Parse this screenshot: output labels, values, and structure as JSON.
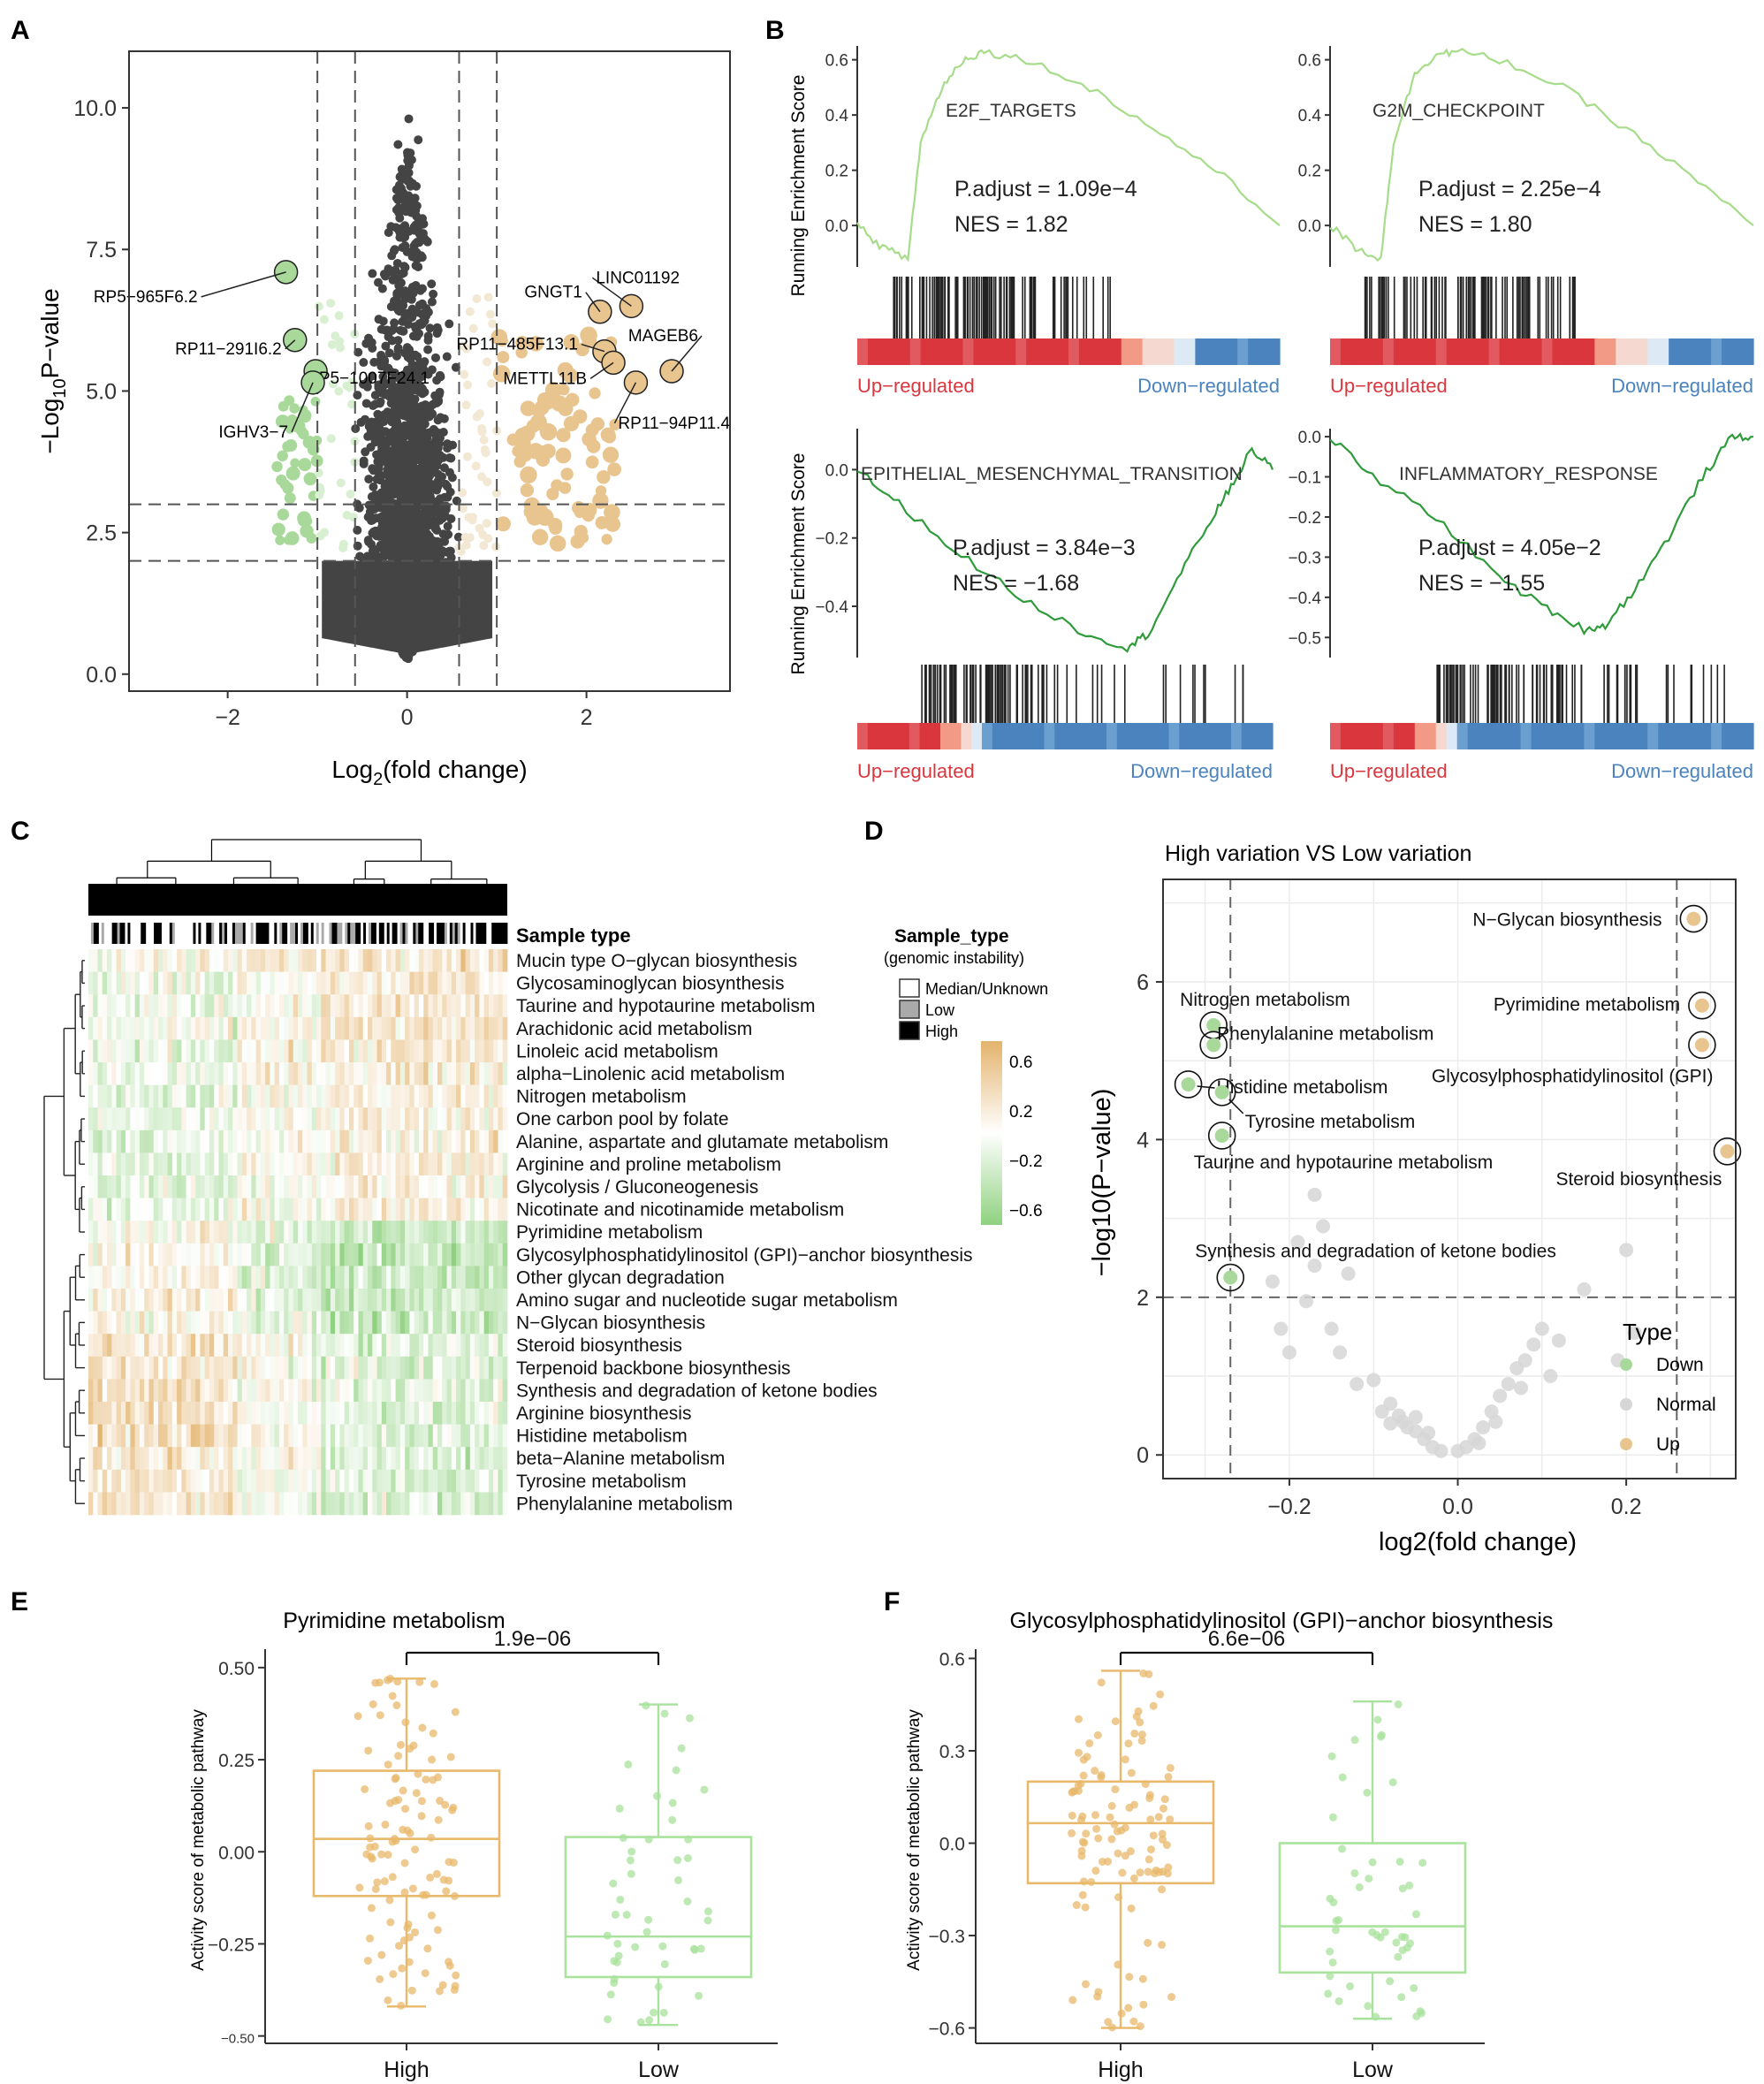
{
  "colors": {
    "down": "#a8d99a",
    "up": "#e8c48f",
    "up_light": "#f3e8d4",
    "down_light": "#d9efd2",
    "gray_pt": "#d6d6d6",
    "dark": "#444444",
    "gsea_pos": "#a6dc8a",
    "gsea_neg": "#2f9b3b",
    "up_red": "#d9363e",
    "down_blue": "#4a83bd",
    "box_high": "#e8b86b",
    "box_low": "#a8e29c"
  },
  "panel_letters": [
    "A",
    "B",
    "C",
    "D",
    "E",
    "F"
  ],
  "chart_data": [
    {
      "id": "A",
      "type": "scatter",
      "title": "",
      "xlabel_main": "Log",
      "xlabel_sub": "2",
      "xlabel_tail": "(fold change)",
      "ylabel_main": "−Log",
      "ylabel_sub": "10",
      "ylabel_tail": "P−value",
      "xlim": [
        -3.1,
        3.6
      ],
      "ylim": [
        -0.3,
        11.0
      ],
      "xticks": [
        -2,
        0,
        2
      ],
      "xtick_labels": [
        "−2",
        "0",
        "2"
      ],
      "yticks": [
        0,
        2.5,
        5,
        7.5,
        10
      ],
      "ytick_labels": [
        "0.0",
        "2.5",
        "5.0",
        "7.5",
        "10.0"
      ],
      "vlines": [
        -1,
        -0.58,
        0.58,
        1
      ],
      "hlines": [
        2,
        3
      ],
      "labeled_genes": [
        {
          "label": "RP5−965F6.2",
          "x": -1.35,
          "y": 7.1
        },
        {
          "label": "RP11−291I6.2",
          "x": -1.25,
          "y": 5.9
        },
        {
          "label": "RP5−1007F24.1",
          "x": -1.02,
          "y": 5.35
        },
        {
          "label": "IGHV3−7",
          "x": -1.05,
          "y": 5.15
        },
        {
          "label": "GNGT1",
          "x": 2.15,
          "y": 6.4
        },
        {
          "label": "LINC01192",
          "x": 2.5,
          "y": 6.5
        },
        {
          "label": "RP11−485F13.1",
          "x": 2.2,
          "y": 5.7
        },
        {
          "label": "MAGEB6",
          "x": 2.95,
          "y": 5.35
        },
        {
          "label": "METTL11B",
          "x": 2.3,
          "y": 5.5
        },
        {
          "label": "RP11−94P11.4",
          "x": 2.55,
          "y": 5.15
        }
      ]
    },
    {
      "id": "B",
      "type": "line",
      "ylabel": "Running Enrichment Score",
      "up_label": "Up−regulated",
      "down_label": "Down−regulated",
      "subplots": [
        {
          "name": "E2F_TARGETS",
          "padj": "P.adjust = 1.09e−4",
          "nes": "NES = 1.82",
          "ylim": [
            -0.15,
            0.65
          ],
          "yticks": [
            0.0,
            0.2,
            0.4,
            0.6
          ],
          "ytick_labels": [
            "0.0",
            "0.2",
            "0.4",
            "0.6"
          ],
          "curve": [
            [
              0,
              0.0
            ],
            [
              0.06,
              -0.08
            ],
            [
              0.12,
              -0.12
            ],
            [
              0.15,
              0.3
            ],
            [
              0.2,
              0.5
            ],
            [
              0.25,
              0.6
            ],
            [
              0.3,
              0.63
            ],
            [
              0.4,
              0.6
            ],
            [
              0.55,
              0.5
            ],
            [
              0.7,
              0.35
            ],
            [
              0.85,
              0.2
            ],
            [
              1.0,
              0.0
            ]
          ]
        },
        {
          "name": "G2M_CHECKPOINT",
          "padj": "P.adjust = 2.25e−4",
          "nes": "NES = 1.80",
          "ylim": [
            -0.15,
            0.65
          ],
          "yticks": [
            0.0,
            0.2,
            0.4,
            0.6
          ],
          "ytick_labels": [
            "0.0",
            "0.2",
            "0.4",
            "0.6"
          ],
          "curve": [
            [
              0,
              0.0
            ],
            [
              0.06,
              -0.08
            ],
            [
              0.12,
              -0.12
            ],
            [
              0.15,
              0.3
            ],
            [
              0.2,
              0.55
            ],
            [
              0.25,
              0.62
            ],
            [
              0.3,
              0.63
            ],
            [
              0.4,
              0.6
            ],
            [
              0.55,
              0.5
            ],
            [
              0.7,
              0.35
            ],
            [
              0.85,
              0.18
            ],
            [
              1.0,
              0.0
            ]
          ]
        },
        {
          "name": "EPITHELIAL_MESENCHYMAL_TRANSITION",
          "padj": "P.adjust = 3.84e−3",
          "nes": "NES = −1.68",
          "ylim": [
            -0.55,
            0.12
          ],
          "yticks": [
            0.0,
            -0.2,
            -0.4
          ],
          "ytick_labels": [
            "0.0",
            "−0.2",
            "−0.4"
          ],
          "curve": [
            [
              0,
              0.0
            ],
            [
              0.1,
              -0.1
            ],
            [
              0.25,
              -0.25
            ],
            [
              0.4,
              -0.38
            ],
            [
              0.55,
              -0.48
            ],
            [
              0.65,
              -0.52
            ],
            [
              0.7,
              -0.48
            ],
            [
              0.78,
              -0.3
            ],
            [
              0.85,
              -0.15
            ],
            [
              0.9,
              -0.05
            ],
            [
              0.95,
              0.06
            ],
            [
              1.0,
              0.0
            ]
          ]
        },
        {
          "name": "INFLAMMATORY_RESPONSE",
          "padj": "P.adjust = 4.05e−2",
          "nes": "NES = −1.55",
          "ylim": [
            -0.55,
            0.02
          ],
          "yticks": [
            0.0,
            -0.1,
            -0.2,
            -0.3,
            -0.4,
            -0.5
          ],
          "ytick_labels": [
            "0.0",
            "−0.1",
            "−0.2",
            "−0.3",
            "−0.4",
            "−0.5"
          ],
          "curve": [
            [
              0,
              0.0
            ],
            [
              0.1,
              -0.1
            ],
            [
              0.25,
              -0.2
            ],
            [
              0.4,
              -0.35
            ],
            [
              0.5,
              -0.42
            ],
            [
              0.6,
              -0.48
            ],
            [
              0.65,
              -0.47
            ],
            [
              0.72,
              -0.38
            ],
            [
              0.8,
              -0.25
            ],
            [
              0.88,
              -0.1
            ],
            [
              0.95,
              0.0
            ],
            [
              1.0,
              0.0
            ]
          ]
        }
      ]
    },
    {
      "id": "C",
      "type": "heatmap",
      "annotation_title": "Sample type",
      "legend_title": "Sample_type",
      "legend_subtitle": "(genomic instability)",
      "legend_items": [
        "Median/Unknown",
        "Low",
        "High"
      ],
      "colorbar_ticks": [
        "0.6",
        "0.2",
        "−0.2",
        "−0.6"
      ],
      "rows": [
        "Mucin type O−glycan biosynthesis",
        "Glycosaminoglycan biosynthesis",
        "Taurine and hypotaurine metabolism",
        "Arachidonic acid metabolism",
        "Linoleic acid metabolism",
        "alpha−Linolenic acid metabolism",
        "Nitrogen metabolism",
        "One carbon pool by folate",
        "Alanine, aspartate and glutamate metabolism",
        "Arginine and proline metabolism",
        "Glycolysis / Gluconeogenesis",
        "Nicotinate and nicotinamide metabolism",
        "Pyrimidine metabolism",
        "Glycosylphosphatidylinositol (GPI)−anchor biosynthesis",
        "Other glycan degradation",
        "Amino sugar and nucleotide sugar metabolism",
        "N−Glycan biosynthesis",
        "Steroid biosynthesis",
        "Terpenoid backbone biosynthesis",
        "Synthesis and degradation of ketone bodies",
        "Arginine biosynthesis",
        "Histidine metabolism",
        "beta−Alanine metabolism",
        "Tyrosine metabolism",
        "Phenylalanine metabolism"
      ]
    },
    {
      "id": "D",
      "type": "scatter",
      "title": "High variation VS Low variation",
      "xlabel": "log2(fold change)",
      "ylabel": "−log10(P−value)",
      "xlim": [
        -0.35,
        0.33
      ],
      "ylim": [
        -0.3,
        7.3
      ],
      "xticks": [
        -0.2,
        0.0,
        0.2
      ],
      "xtick_labels": [
        "−0.2",
        "0.0",
        "0.2"
      ],
      "yticks": [
        0,
        2,
        4,
        6
      ],
      "ytick_labels": [
        "0",
        "2",
        "4",
        "6"
      ],
      "vlines": [
        -0.27,
        0.26
      ],
      "hline": 2,
      "legend_title": "Type",
      "legend_items": [
        "Down",
        "Normal",
        "Up"
      ],
      "labeled": [
        {
          "label": "N−Glycan biosynthesis",
          "x": 0.28,
          "y": 6.8,
          "type": "Up"
        },
        {
          "label": "Pyrimidine metabolism",
          "x": 0.29,
          "y": 5.7,
          "type": "Up"
        },
        {
          "label": "Glycosylphosphatidylinositol (GPI)",
          "x": 0.29,
          "y": 5.2,
          "type": "Up"
        },
        {
          "label": "Steroid biosynthesis",
          "x": 0.32,
          "y": 3.85,
          "type": "Up"
        },
        {
          "label": "Nitrogen metabolism",
          "x": -0.29,
          "y": 5.45,
          "type": "Down"
        },
        {
          "label": "Phenylalanine metabolism",
          "x": -0.29,
          "y": 5.2,
          "type": "Down"
        },
        {
          "label": "Histidine metabolism",
          "x": -0.32,
          "y": 4.7,
          "type": "Down"
        },
        {
          "label": "Tyrosine metabolism",
          "x": -0.28,
          "y": 4.6,
          "type": "Down"
        },
        {
          "label": "Taurine and hypotaurine metabolism",
          "x": -0.28,
          "y": 4.05,
          "type": "Down"
        },
        {
          "label": "Synthesis and degradation of ketone bodies",
          "x": -0.27,
          "y": 2.25,
          "type": "Down"
        }
      ],
      "normal_points": [
        [
          -0.19,
          2.7
        ],
        [
          -0.17,
          3.3
        ],
        [
          -0.16,
          2.9
        ],
        [
          -0.21,
          1.6
        ],
        [
          -0.22,
          2.2
        ],
        [
          -0.18,
          1.95
        ],
        [
          -0.15,
          1.6
        ],
        [
          -0.13,
          2.3
        ],
        [
          -0.14,
          1.3
        ],
        [
          -0.12,
          0.9
        ],
        [
          -0.1,
          0.95
        ],
        [
          -0.08,
          0.65
        ],
        [
          -0.07,
          0.5
        ],
        [
          -0.06,
          0.35
        ],
        [
          -0.05,
          0.3
        ],
        [
          -0.04,
          0.2
        ],
        [
          -0.03,
          0.1
        ],
        [
          -0.02,
          0.05
        ],
        [
          0.0,
          0.05
        ],
        [
          0.01,
          0.1
        ],
        [
          0.02,
          0.2
        ],
        [
          0.03,
          0.35
        ],
        [
          0.04,
          0.55
        ],
        [
          0.05,
          0.75
        ],
        [
          0.06,
          0.9
        ],
        [
          0.07,
          1.1
        ],
        [
          0.08,
          1.2
        ],
        [
          0.09,
          1.4
        ],
        [
          0.1,
          1.6
        ],
        [
          0.11,
          1.0
        ],
        [
          0.12,
          1.45
        ],
        [
          0.15,
          2.1
        ],
        [
          0.2,
          2.6
        ],
        [
          0.21,
          1.55
        ],
        [
          0.19,
          1.2
        ],
        [
          -0.2,
          1.3
        ],
        [
          -0.17,
          2.4
        ],
        [
          -0.09,
          0.55
        ],
        [
          -0.08,
          0.4
        ],
        [
          -0.065,
          0.42
        ],
        [
          -0.05,
          0.48
        ],
        [
          -0.035,
          0.28
        ],
        [
          0.025,
          0.15
        ],
        [
          0.045,
          0.42
        ],
        [
          0.075,
          0.85
        ]
      ]
    },
    {
      "id": "E",
      "type": "box",
      "title": "Pyrimidine metabolism",
      "ylabel": "Activity score of metabolic pathway",
      "pvalue": "1.9e−06",
      "categories": [
        "High",
        "Low"
      ],
      "ylim": [
        -0.52,
        0.55
      ],
      "yticks": [
        -0.5,
        -0.25,
        0.0,
        0.25,
        0.5
      ],
      "ytick_labels": [
        "−0.50",
        "−0.25",
        "0.00",
        "0.25",
        "0.50"
      ],
      "boxes": [
        {
          "min": -0.42,
          "q1": -0.12,
          "median": 0.035,
          "q3": 0.22,
          "max": 0.47,
          "n": 110
        },
        {
          "min": -0.47,
          "q1": -0.34,
          "median": -0.23,
          "q3": 0.04,
          "max": 0.4,
          "n": 50
        }
      ]
    },
    {
      "id": "F",
      "type": "box",
      "title": "Glycosylphosphatidylinositol (GPI)−anchor biosynthesis",
      "ylabel": "Activity score of metabolic pathway",
      "pvalue": "6.6e−06",
      "categories": [
        "High",
        "Low"
      ],
      "ylim": [
        -0.65,
        0.63
      ],
      "yticks": [
        -0.6,
        -0.3,
        0.0,
        0.3,
        0.6
      ],
      "ytick_labels": [
        "−0.6",
        "−0.3",
        "0.0",
        "0.3",
        "0.6"
      ],
      "boxes": [
        {
          "min": -0.6,
          "q1": -0.13,
          "median": 0.065,
          "q3": 0.2,
          "max": 0.56,
          "n": 110
        },
        {
          "min": -0.57,
          "q1": -0.42,
          "median": -0.27,
          "q3": 0.0,
          "max": 0.46,
          "n": 50
        }
      ]
    }
  ]
}
